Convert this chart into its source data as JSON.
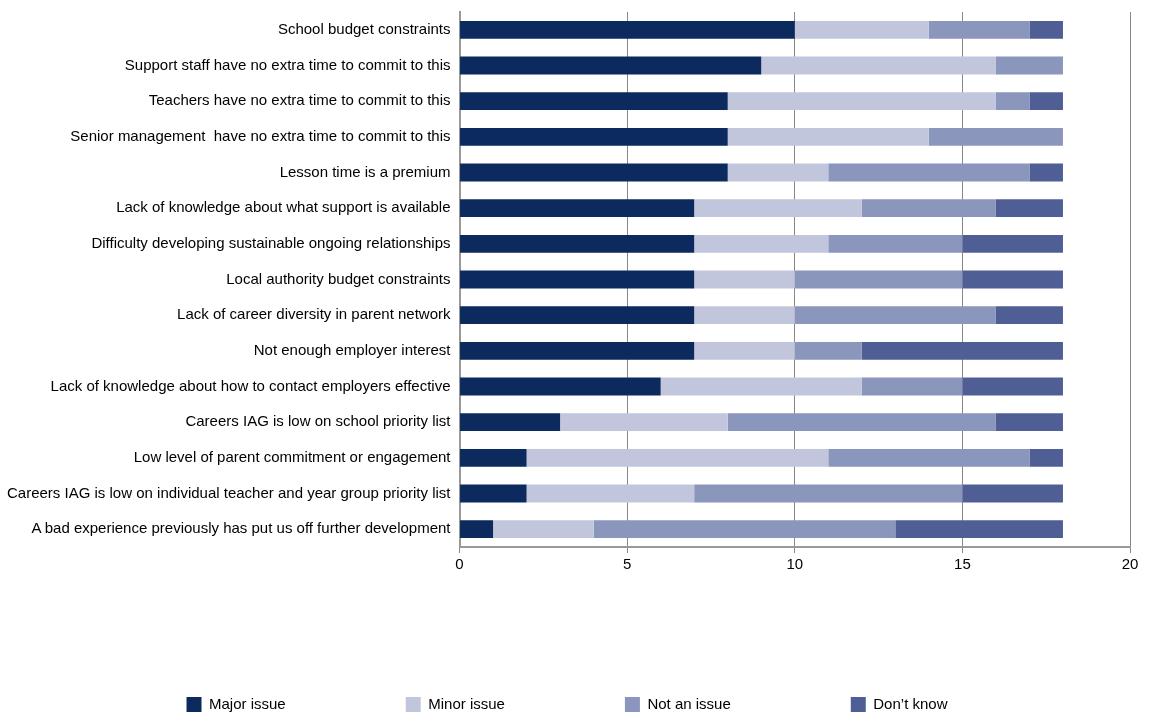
{
  "chart_data": {
    "type": "bar",
    "orientation": "horizontal",
    "stacked": true,
    "categories": [
      "School budget constraints",
      "Support staff have no extra time to commit to this",
      "Teachers have no extra time to commit to this",
      "Senior management  have no extra time to commit to this",
      "Lesson time is a premium",
      "Lack of knowledge about what support is available",
      "Difficulty developing sustainable ongoing relationships",
      "Local authority budget constraints",
      "Lack of career diversity in parent network",
      "Not enough employer interest",
      "Lack of knowledge about how to contact employers effective",
      "Careers IAG is low on school priority list",
      "Low level of parent commitment or engagement",
      "Careers IAG is low on individual teacher and year group priority list",
      "A bad experience previously has put us off further development"
    ],
    "series": [
      {
        "name": "Major issue",
        "color": "#0c2a5e",
        "values": [
          10,
          9,
          8,
          8,
          8,
          7,
          7,
          7,
          7,
          7,
          6,
          3,
          2,
          2,
          1
        ]
      },
      {
        "name": "Minor issue",
        "color": "#c2c6dc",
        "values": [
          4,
          7,
          8,
          6,
          3,
          5,
          4,
          3,
          3,
          3,
          6,
          5,
          9,
          5,
          3
        ]
      },
      {
        "name": "Not an issue",
        "color": "#8a96bb",
        "values": [
          3,
          2,
          1,
          4,
          6,
          4,
          4,
          5,
          6,
          2,
          3,
          8,
          6,
          8,
          9
        ]
      },
      {
        "name": "Don’t know",
        "color": "#4f5f96",
        "values": [
          1,
          0,
          1,
          0,
          1,
          2,
          3,
          3,
          2,
          6,
          3,
          2,
          1,
          3,
          5
        ]
      }
    ],
    "xlim": [
      0,
      20
    ],
    "xticks": [
      0,
      5,
      10,
      15,
      20
    ],
    "grid": "x",
    "legend": "bottom"
  }
}
